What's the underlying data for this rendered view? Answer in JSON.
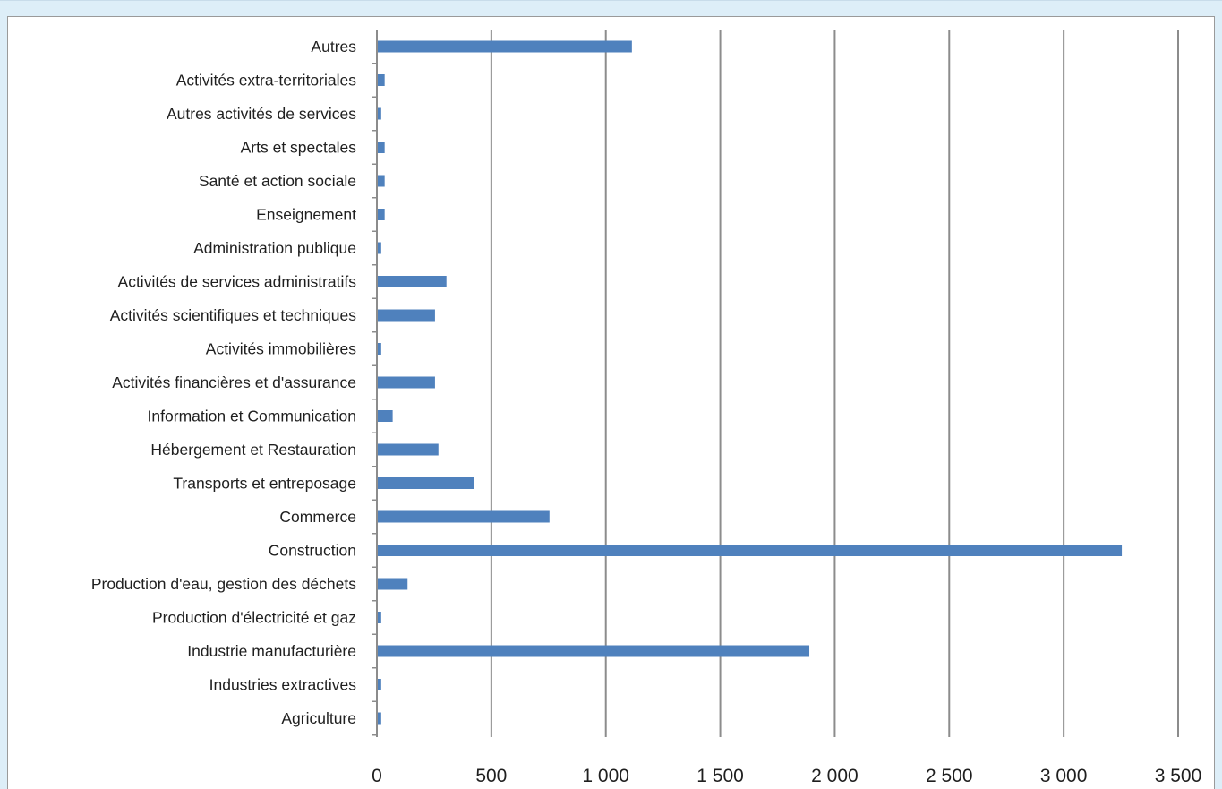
{
  "chart_data": {
    "type": "bar",
    "orientation": "horizontal",
    "title": "",
    "xlabel": "",
    "ylabel": "",
    "xlim": [
      0,
      3500
    ],
    "xticks": [
      0,
      500,
      1000,
      1500,
      2000,
      2500,
      3000,
      3500
    ],
    "xtick_labels": [
      "0",
      "500",
      "1 000",
      "1 500",
      "2 000",
      "2 500",
      "3 000",
      "3 500"
    ],
    "grid": true,
    "legend": "none",
    "bar_color": "#4f81bd",
    "grid_color": "#8c8c8c",
    "categories": [
      "Autres",
      "Activités extra-territoriales",
      "Autres activités de services",
      "Arts et spectales",
      "Santé et action sociale",
      "Enseignement",
      "Administration publique",
      "Activités de services administratifs",
      "Activités scientifiques et techniques",
      "Activités immobilières",
      "Activités financières et d'assurance",
      "Information et Communication",
      "Hébergement et Restauration",
      "Transports et entreposage",
      "Commerce",
      "Construction",
      "Production d'eau, gestion des déchets",
      "Production d'électricité et gaz",
      "Industrie manufacturière",
      "Industries extractives",
      "Agriculture"
    ],
    "values": [
      1110,
      30,
      15,
      30,
      30,
      30,
      15,
      300,
      250,
      15,
      250,
      65,
      265,
      420,
      750,
      3250,
      130,
      15,
      1885,
      15,
      15
    ]
  }
}
